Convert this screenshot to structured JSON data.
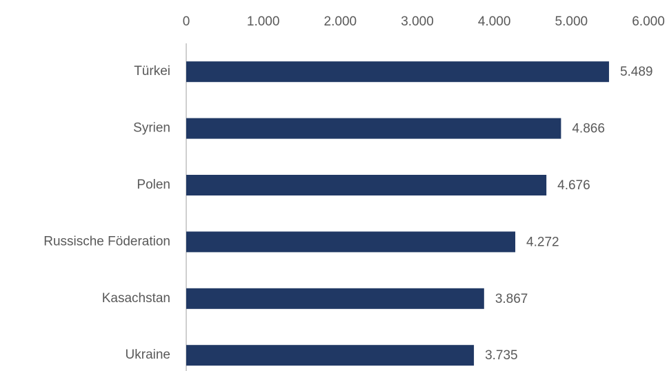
{
  "chart_data": {
    "type": "bar",
    "orientation": "horizontal",
    "categories": [
      "Türkei",
      "Syrien",
      "Polen",
      "Russische Föderation",
      "Kasachstan",
      "Ukraine"
    ],
    "values": [
      5489,
      4866,
      4676,
      4272,
      3867,
      3735
    ],
    "value_labels": [
      "5.489",
      "4.866",
      "4.676",
      "4.272",
      "3.867",
      "3.735"
    ],
    "color": "#203864",
    "xlim": [
      0,
      6000
    ],
    "xticks": [
      0,
      {
        "value": 1000,
        "label": "1.000"
      },
      {
        "value": 2000,
        "label": "2.000"
      },
      {
        "value": 3000,
        "label": "3.000"
      },
      {
        "value": 4000,
        "label": "4.000"
      },
      {
        "value": 5000,
        "label": "5.000"
      },
      {
        "value": 6000,
        "label": "6.000"
      }
    ],
    "grid": false
  }
}
